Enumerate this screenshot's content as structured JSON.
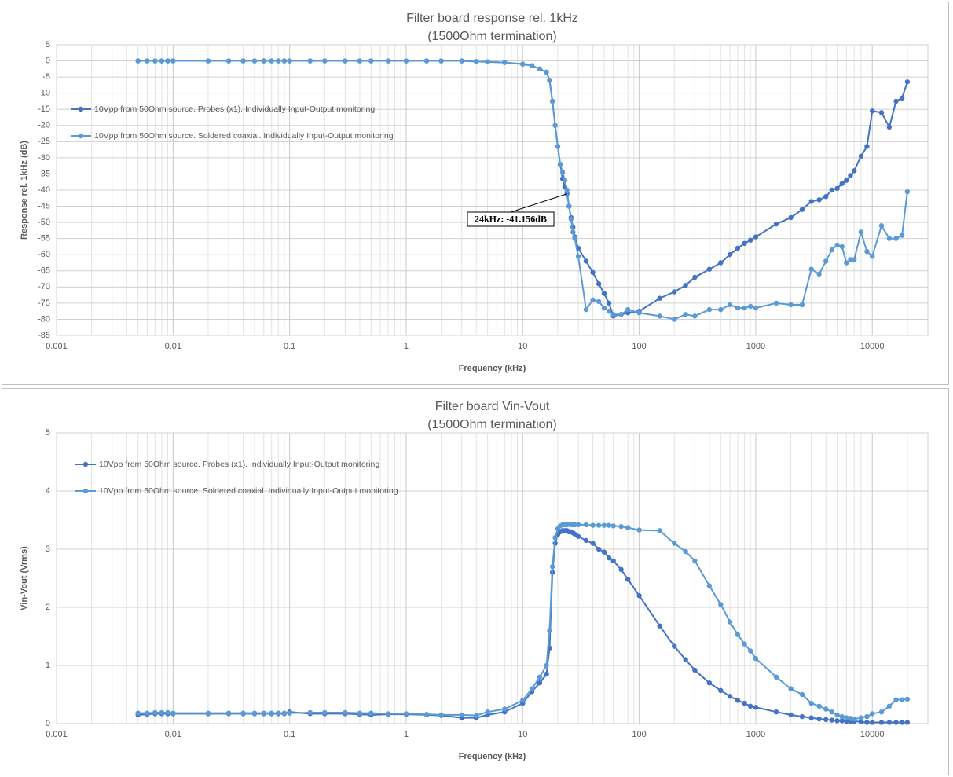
{
  "chart_data": [
    {
      "type": "line",
      "title": "Filter board response rel. 1kHz",
      "subtitle": "(1500Ohm termination)",
      "x_label": "Frequency (kHz)",
      "y_label": "Response rel. 1kHz (dB)",
      "x_log": true,
      "grid": true,
      "minor_grid": true,
      "legend": "upper left",
      "xlim": [
        0.001,
        30000
      ],
      "xticks": [
        0.001,
        0.01,
        0.1,
        1,
        10,
        100,
        1000,
        10000
      ],
      "ylim": [
        -85,
        5
      ],
      "yticks": [
        5,
        0,
        -5,
        -10,
        -15,
        -20,
        -25,
        -30,
        -35,
        -40,
        -45,
        -50,
        -55,
        -60,
        -65,
        -70,
        -75,
        -80,
        -85
      ],
      "annotation": "24kHz: -41.156dB",
      "x": [
        0.005,
        0.006,
        0.007,
        0.008,
        0.009,
        0.01,
        0.02,
        0.03,
        0.04,
        0.05,
        0.06,
        0.07,
        0.08,
        0.09,
        0.1,
        0.15,
        0.2,
        0.3,
        0.4,
        0.5,
        0.7,
        1,
        1.5,
        2,
        3,
        4,
        5,
        7,
        10,
        12,
        14,
        16,
        17,
        18,
        19,
        20,
        21,
        22,
        23,
        24,
        25,
        26,
        27,
        28,
        30,
        35,
        40,
        45,
        50,
        55,
        60,
        70,
        80,
        100,
        150,
        200,
        250,
        300,
        400,
        500,
        600,
        700,
        800,
        900,
        1000,
        1500,
        2000,
        2500,
        3000,
        3500,
        4000,
        4500,
        5000,
        5500,
        6000,
        6500,
        7000,
        8000,
        9000,
        10000,
        12000,
        14000,
        16000,
        18000,
        20000
      ],
      "series": [
        {
          "name": "10Vpp from 50Ohm source. Probes (x1). Individually Input-Output monitoring",
          "color": "#4472c4",
          "values": [
            0,
            0,
            0,
            0,
            0,
            0,
            0,
            0,
            0,
            0,
            0,
            0,
            0,
            0,
            0,
            0,
            0,
            0,
            0,
            0,
            0,
            0,
            0,
            0,
            0,
            -0.2,
            -0.3,
            -0.5,
            -1,
            -1.5,
            -2.5,
            -3.5,
            -6,
            -12.5,
            -20,
            -26.5,
            -32,
            -36.5,
            -39,
            -41.156,
            -45,
            -48.5,
            -51.5,
            -54.5,
            -58,
            -62,
            -65.5,
            -69,
            -72,
            -75,
            -79,
            -78.5,
            -78,
            -77.5,
            -73.5,
            -71.5,
            -69.5,
            -67,
            -64.5,
            -62.5,
            -60,
            -58,
            -56.5,
            -55.5,
            -54.5,
            -50.5,
            -48.5,
            -46,
            -43.5,
            -43,
            -42,
            -40,
            -39.5,
            -38,
            -37,
            -35.5,
            -34,
            -29.5,
            -26.5,
            -15.5,
            -16,
            -20.5,
            -12.5,
            -11.5,
            -6.5
          ]
        },
        {
          "name": "10Vpp from 50Ohm source. Soldered coaxial. Individually Input-Output monitoring",
          "color": "#5b9bd5",
          "values": [
            0,
            0,
            0,
            0,
            0,
            0,
            0,
            0,
            0,
            0,
            0,
            0,
            0,
            0,
            0,
            0,
            0,
            0,
            0,
            0,
            0,
            0,
            0,
            0,
            0,
            -0.2,
            -0.3,
            -0.5,
            -1,
            -1.5,
            -2.5,
            -3.5,
            -6,
            -12.5,
            -20,
            -26.5,
            -32,
            -34.5,
            -37,
            -40,
            -45,
            -49,
            -53,
            -55,
            -60.5,
            -77,
            -74,
            -74.5,
            -76.5,
            -77.5,
            -78.5,
            -78.5,
            -77,
            -78,
            -79,
            -80,
            -78.5,
            -79,
            -77,
            -77,
            -75.5,
            -76.5,
            -76.5,
            -76,
            -76.5,
            -75,
            -75.5,
            -75.5,
            -64.5,
            -66,
            -62,
            -58.5,
            -57,
            -57.5,
            -62.5,
            -61.5,
            -61.5,
            -53,
            -59,
            -60.5,
            -51,
            -55,
            -55,
            -54,
            -40.5
          ]
        }
      ]
    },
    {
      "type": "line",
      "title": "Filter board Vin-Vout",
      "subtitle": "(1500Ohm termination)",
      "x_label": "Frequency (kHz)",
      "y_label": "Vin-Vout (Vrms)",
      "x_log": true,
      "grid": true,
      "minor_grid": true,
      "legend": "upper left",
      "xlim": [
        0.001,
        30000
      ],
      "xticks": [
        0.001,
        0.01,
        0.1,
        1,
        10,
        100,
        1000,
        10000
      ],
      "ylim": [
        0,
        5
      ],
      "yticks": [
        0,
        1,
        2,
        3,
        4,
        5
      ],
      "x": [
        0.005,
        0.006,
        0.007,
        0.008,
        0.009,
        0.01,
        0.02,
        0.03,
        0.04,
        0.05,
        0.06,
        0.07,
        0.08,
        0.09,
        0.1,
        0.15,
        0.2,
        0.3,
        0.4,
        0.5,
        0.7,
        1,
        1.5,
        2,
        3,
        4,
        5,
        7,
        10,
        12,
        14,
        16,
        17,
        18,
        19,
        20,
        21,
        22,
        23,
        24,
        25,
        26,
        27,
        28,
        30,
        35,
        40,
        45,
        50,
        55,
        60,
        70,
        80,
        100,
        150,
        200,
        250,
        300,
        400,
        500,
        600,
        700,
        800,
        900,
        1000,
        1500,
        2000,
        2500,
        3000,
        3500,
        4000,
        4500,
        5000,
        5500,
        6000,
        6500,
        7000,
        8000,
        9000,
        10000,
        12000,
        14000,
        16000,
        18000,
        20000
      ],
      "series": [
        {
          "name": "10Vpp from 50Ohm source. Probes (x1). Individually Input-Output monitoring",
          "color": "#4472c4",
          "values": [
            0.15,
            0.16,
            0.17,
            0.17,
            0.17,
            0.17,
            0.17,
            0.17,
            0.17,
            0.17,
            0.17,
            0.17,
            0.17,
            0.17,
            0.2,
            0.17,
            0.17,
            0.17,
            0.16,
            0.15,
            0.16,
            0.16,
            0.15,
            0.14,
            0.1,
            0.1,
            0.15,
            0.2,
            0.35,
            0.55,
            0.7,
            0.85,
            1.3,
            2.6,
            3.1,
            3.25,
            3.3,
            3.32,
            3.32,
            3.32,
            3.3,
            3.3,
            3.28,
            3.26,
            3.22,
            3.15,
            3.1,
            3.0,
            2.95,
            2.85,
            2.8,
            2.65,
            2.48,
            2.2,
            1.68,
            1.33,
            1.1,
            0.92,
            0.7,
            0.57,
            0.47,
            0.4,
            0.35,
            0.3,
            0.28,
            0.2,
            0.15,
            0.12,
            0.1,
            0.08,
            0.07,
            0.06,
            0.05,
            0.05,
            0.04,
            0.04,
            0.04,
            0.03,
            0.02,
            0.02,
            0.02,
            0.02,
            0.02,
            0.02,
            0.02
          ]
        },
        {
          "name": "10Vpp from 50Ohm source. Soldered coaxial. Individually Input-Output monitoring",
          "color": "#5b9bd5",
          "values": [
            0.18,
            0.18,
            0.19,
            0.19,
            0.19,
            0.18,
            0.18,
            0.18,
            0.18,
            0.18,
            0.18,
            0.18,
            0.18,
            0.18,
            0.18,
            0.19,
            0.19,
            0.19,
            0.18,
            0.18,
            0.17,
            0.17,
            0.16,
            0.15,
            0.15,
            0.14,
            0.2,
            0.25,
            0.4,
            0.6,
            0.8,
            1.0,
            1.6,
            2.7,
            3.2,
            3.35,
            3.4,
            3.42,
            3.42,
            3.42,
            3.43,
            3.42,
            3.42,
            3.42,
            3.42,
            3.42,
            3.41,
            3.41,
            3.41,
            3.41,
            3.4,
            3.39,
            3.37,
            3.33,
            3.32,
            3.1,
            2.96,
            2.8,
            2.37,
            2.05,
            1.75,
            1.53,
            1.37,
            1.25,
            1.12,
            0.8,
            0.6,
            0.5,
            0.35,
            0.3,
            0.25,
            0.2,
            0.15,
            0.12,
            0.1,
            0.09,
            0.08,
            0.1,
            0.12,
            0.17,
            0.2,
            0.3,
            0.41,
            0.41,
            0.42
          ]
        }
      ]
    }
  ]
}
